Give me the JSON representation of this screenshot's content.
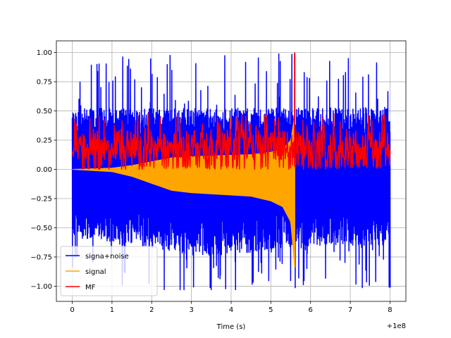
{
  "chart_data": {
    "type": "line",
    "title": "",
    "xlabel": "Time (s)",
    "ylabel": "",
    "x_offset_label": "+1e8",
    "xlim": [
      -0.4,
      8.4
    ],
    "ylim": [
      -1.13,
      1.1
    ],
    "x_ticks": [
      0,
      1,
      2,
      3,
      4,
      5,
      6,
      7,
      8
    ],
    "y_ticks": [
      -1.0,
      -0.75,
      -0.5,
      -0.25,
      0.0,
      0.25,
      0.5,
      0.75,
      1.0
    ],
    "x_tick_labels": [
      "0",
      "1",
      "2",
      "3",
      "4",
      "5",
      "6",
      "7",
      "8"
    ],
    "y_tick_labels": [
      "−1.00",
      "−0.75",
      "−0.50",
      "−0.25",
      "0.00",
      "0.25",
      "0.50",
      "0.75",
      "1.00"
    ],
    "grid": true,
    "legend_position": "lower-left",
    "series": [
      {
        "name": "signa+noise",
        "color": "#0000ff",
        "description": "dense noisy band",
        "x_range": [
          0,
          8.0
        ],
        "low_envelope": [
          [
            0,
            -0.55
          ],
          [
            1,
            -0.6
          ],
          [
            2,
            -0.65
          ],
          [
            3,
            -0.7
          ],
          [
            4,
            -0.7
          ],
          [
            5,
            -0.65
          ],
          [
            6,
            -0.62
          ],
          [
            7,
            -0.62
          ],
          [
            8,
            -0.62
          ]
        ],
        "high_envelope": [
          [
            0,
            0.5
          ],
          [
            1,
            0.5
          ],
          [
            2,
            0.5
          ],
          [
            3,
            0.5
          ],
          [
            4,
            0.5
          ],
          [
            5,
            0.5
          ],
          [
            6,
            0.5
          ],
          [
            7,
            0.5
          ],
          [
            8,
            0.5
          ]
        ],
        "peak_max": 1.0,
        "peak_min": -1.03
      },
      {
        "name": "signal",
        "color": "#ffa500",
        "description": "chirp growing in amplitude until merger",
        "x_range": [
          0,
          5.6
        ],
        "envelope": [
          [
            0,
            0.0
          ],
          [
            1,
            0.02
          ],
          [
            1.5,
            0.06
          ],
          [
            2,
            0.12
          ],
          [
            2.5,
            0.18
          ],
          [
            3,
            0.2
          ],
          [
            3.5,
            0.21
          ],
          [
            4,
            0.22
          ],
          [
            4.5,
            0.23
          ],
          [
            5,
            0.27
          ],
          [
            5.3,
            0.32
          ],
          [
            5.5,
            0.45
          ],
          [
            5.6,
            0.84
          ]
        ],
        "merger_time": 5.6,
        "merger_peak": 0.84
      },
      {
        "name": "MF",
        "color": "#ff0000",
        "description": "matched filter output",
        "x_range": [
          0,
          8.0
        ],
        "baseline": 0.08,
        "band_top": 0.25,
        "peak_x": 5.6,
        "peak_y": 1.0
      }
    ]
  }
}
